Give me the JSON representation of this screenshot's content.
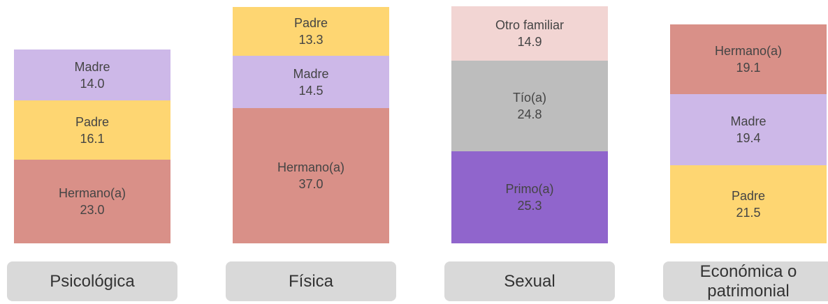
{
  "chart_data": {
    "type": "stacked_bar",
    "stacks": [
      {
        "category": "Psicológica",
        "names": [
          "Hermano(a)",
          "Padre",
          "Madre"
        ],
        "values": [
          23.0,
          16.1,
          14.0
        ],
        "value_labels": [
          "23.0",
          "16.1",
          "14.0"
        ],
        "colors": [
          "#d99088",
          "#fed672",
          "#cdb8e8"
        ]
      },
      {
        "category": "Física",
        "names": [
          "Hermano(a)",
          "Madre",
          "Padre"
        ],
        "values": [
          37.0,
          14.5,
          13.3
        ],
        "value_labels": [
          "37.0",
          "14.5",
          "13.3"
        ],
        "colors": [
          "#d99088",
          "#cdb8e8",
          "#fed672"
        ]
      },
      {
        "category": "Sexual",
        "names": [
          "Primo(a)",
          "Tío(a)",
          "Otro familiar"
        ],
        "values": [
          25.3,
          24.8,
          14.9
        ],
        "value_labels": [
          "25.3",
          "24.8",
          "14.9"
        ],
        "colors": [
          "#9065cc",
          "#bdbdbd",
          "#f2d5d3"
        ]
      },
      {
        "category": "Económica o patrimonial",
        "names": [
          "Padre",
          "Madre",
          "Hermano(a)"
        ],
        "values": [
          21.5,
          19.4,
          19.1
        ],
        "value_labels": [
          "21.5",
          "19.4",
          "19.1"
        ],
        "colors": [
          "#fed672",
          "#cdb8e8",
          "#d99088"
        ]
      }
    ]
  }
}
